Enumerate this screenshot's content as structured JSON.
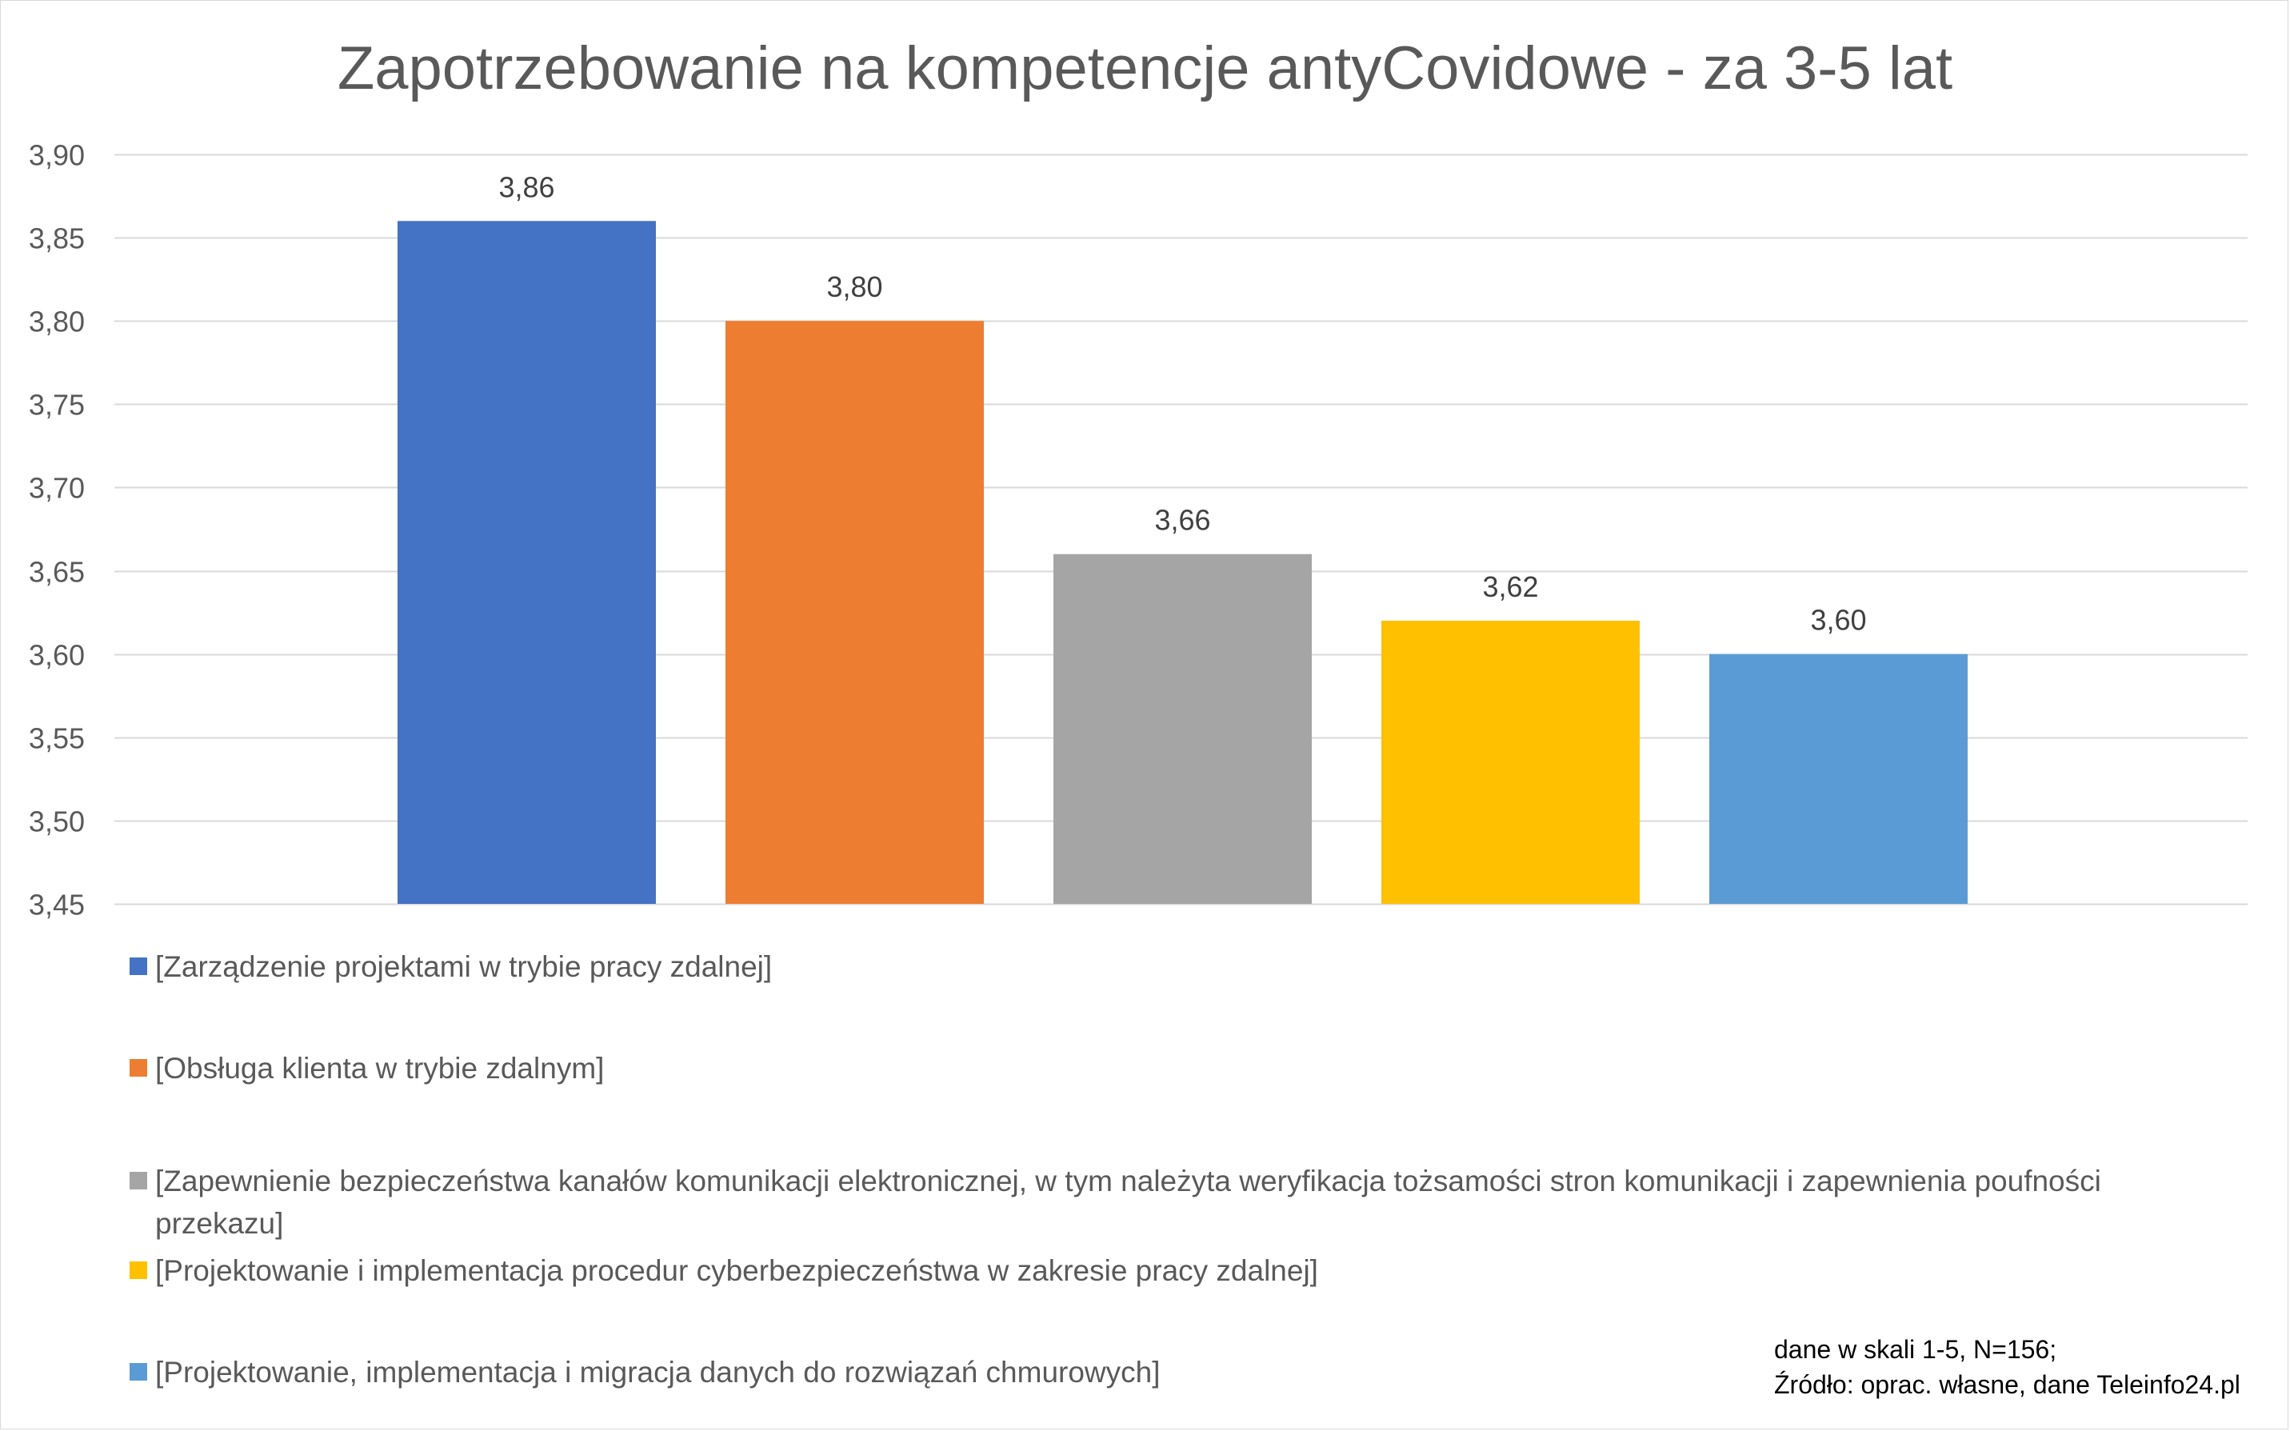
{
  "chart_data": {
    "type": "bar",
    "title": "Zapotrzebowanie na kompetencje antyCovidowe - za 3-5 lat",
    "xlabel": "",
    "ylabel": "",
    "ylim": [
      3.45,
      3.9
    ],
    "y_ticks": [
      "3,45",
      "3,50",
      "3,55",
      "3,60",
      "3,65",
      "3,70",
      "3,75",
      "3,80",
      "3,85",
      "3,90"
    ],
    "grid": true,
    "legend_position": "bottom",
    "series": [
      {
        "name": "[Zarządzenie projektami w trybie pracy zdalnej]",
        "value": 3.86,
        "label": "3,86",
        "color": "#4472C4"
      },
      {
        "name": "[Obsługa klienta w trybie zdalnym]",
        "value": 3.8,
        "label": "3,80",
        "color": "#ED7D31"
      },
      {
        "name": "[Zapewnienie bezpieczeństwa kanałów komunikacji elektronicznej, w tym należyta weryfikacja tożsamości stron komunikacji i zapewnienia poufności przekazu]",
        "value": 3.66,
        "label": "3,66",
        "color": "#A5A5A5"
      },
      {
        "name": "[Projektowanie i implementacja procedur cyberbezpieczeństwa w zakresie pracy zdalnej]",
        "value": 3.62,
        "label": "3,62",
        "color": "#FFC000"
      },
      {
        "name": "[Projektowanie, implementacja i migracja danych do rozwiązań chmurowych]",
        "value": 3.6,
        "label": "3,60",
        "color": "#5B9BD5"
      }
    ]
  },
  "note": {
    "line1": "dane w skali 1-5, N=156;",
    "line2": "Źródło: oprac. własne, dane Teleinfo24.pl"
  }
}
